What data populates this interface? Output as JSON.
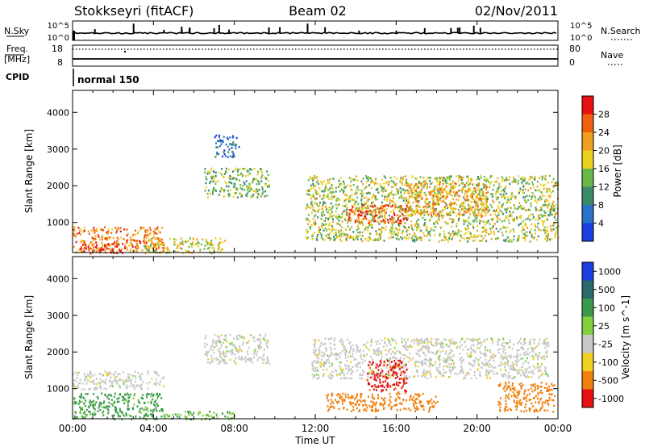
{
  "header": {
    "station": "Stokkseyri (fitACF)",
    "beam": "Beam 02",
    "date": "02/Nov/2011"
  },
  "top_panels": {
    "nsky_label": "N.Sky",
    "nsky_ticks": [
      "10^5",
      "10^0"
    ],
    "nsearch_label": "N.Search",
    "nsearch_ticks": [
      "10^5",
      "10^0"
    ],
    "freq_label": "Freq.",
    "freq_unit": "[MHz]",
    "freq_ticks": [
      "18",
      "8"
    ],
    "nave_label": "Nave",
    "nave_ticks": [
      "80",
      "0"
    ],
    "cpid_label": "CPID",
    "cpid_value": "normal 150"
  },
  "x_axis": {
    "label": "Time UT",
    "ticks": [
      "00:00",
      "04:00",
      "08:00",
      "12:00",
      "16:00",
      "20:00",
      "00:00"
    ]
  },
  "colors": {
    "power_scale": [
      "#1a3fe0",
      "#2a72c8",
      "#3a8a6a",
      "#6ab84a",
      "#ecd020",
      "#f0a020",
      "#f06010",
      "#e81010"
    ],
    "velocity_scale": [
      "#1a3fe0",
      "#2a6a6a",
      "#3a9a4a",
      "#80d040",
      "#c8c8c8",
      "#f0d020",
      "#f08010",
      "#e81010"
    ]
  },
  "chart_data": [
    {
      "type": "heatmap",
      "panel": "power",
      "xlabel": "Time UT",
      "ylabel": "Slant Range [km]",
      "xlim_hours": [
        0,
        24
      ],
      "ylim": [
        180,
        4600
      ],
      "yticks": [
        1000,
        2000,
        3000,
        4000
      ],
      "colorbar_label": "Power [dB]",
      "colorbar_ticks": [
        "28",
        "24",
        "20",
        "16",
        "12",
        "8",
        "4"
      ],
      "colorbar_range": [
        0,
        32
      ],
      "features": [
        {
          "t_start": 0.0,
          "t_end": 4.5,
          "range_low": 180,
          "range_high": 900,
          "level": 24
        },
        {
          "t_start": 0.3,
          "t_end": 2.5,
          "range_low": 180,
          "range_high": 500,
          "level": 28
        },
        {
          "t_start": 3.5,
          "t_end": 7.5,
          "range_low": 180,
          "range_high": 600,
          "level": 18
        },
        {
          "t_start": 6.5,
          "t_end": 9.7,
          "range_low": 1700,
          "range_high": 2500,
          "level": 14
        },
        {
          "t_start": 7.0,
          "t_end": 8.2,
          "range_low": 2800,
          "range_high": 3400,
          "level": 6
        },
        {
          "t_start": 11.5,
          "t_end": 24.0,
          "range_low": 500,
          "range_high": 2300,
          "level": 16
        },
        {
          "t_start": 13.5,
          "t_end": 16.5,
          "range_low": 1000,
          "range_high": 1500,
          "level": 27
        },
        {
          "t_start": 16.5,
          "t_end": 20.5,
          "range_low": 1200,
          "range_high": 2100,
          "level": 22
        }
      ]
    },
    {
      "type": "heatmap",
      "panel": "velocity",
      "xlabel": "Time UT",
      "ylabel": "Slant Range [km]",
      "xlim_hours": [
        0,
        24
      ],
      "ylim": [
        180,
        4600
      ],
      "yticks": [
        1000,
        2000,
        3000,
        4000
      ],
      "colorbar_label": "Velocity [m s^-1]",
      "colorbar_ticks": [
        "1000",
        "500",
        "100",
        "25",
        "-25",
        "-100",
        "-500",
        "-1000"
      ],
      "features": [
        {
          "t_start": 0.0,
          "t_end": 4.5,
          "range_low": 180,
          "range_high": 900,
          "velocity": 150
        },
        {
          "t_start": 0.0,
          "t_end": 4.5,
          "range_low": 1000,
          "range_high": 1500,
          "velocity": 0
        },
        {
          "t_start": 4.5,
          "t_end": 8.0,
          "range_low": 180,
          "range_high": 400,
          "velocity": 80
        },
        {
          "t_start": 6.5,
          "t_end": 9.7,
          "range_low": 1700,
          "range_high": 2500,
          "velocity": 0
        },
        {
          "t_start": 11.8,
          "t_end": 23.5,
          "range_low": 1300,
          "range_high": 2400,
          "velocity": 0
        },
        {
          "t_start": 12.5,
          "t_end": 18.0,
          "range_low": 400,
          "range_high": 900,
          "velocity": -200
        },
        {
          "t_start": 14.5,
          "t_end": 16.5,
          "range_low": 900,
          "range_high": 1800,
          "velocity": -800
        },
        {
          "t_start": 21.0,
          "t_end": 23.8,
          "range_low": 400,
          "range_high": 1200,
          "velocity": -200
        }
      ]
    }
  ]
}
